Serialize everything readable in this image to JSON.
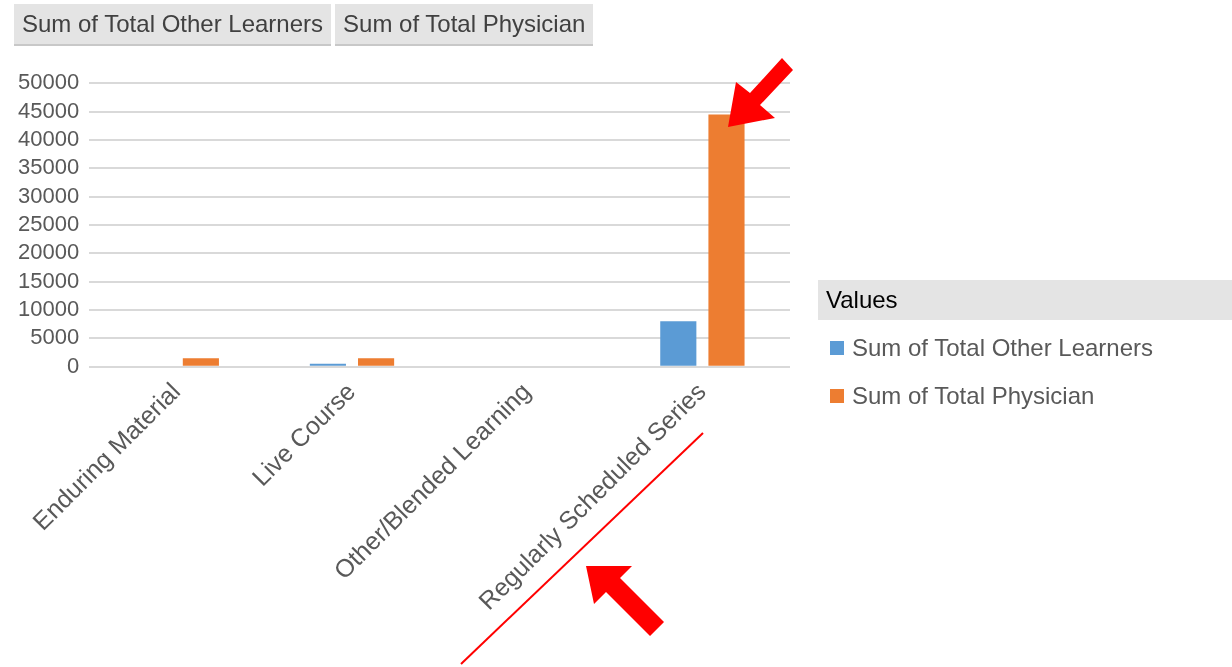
{
  "chart_data": {
    "type": "bar",
    "categories": [
      "Enduring Material",
      "Live Course",
      "Other/Blended Learning",
      "Regularly Scheduled Series"
    ],
    "series": [
      {
        "name": "Sum of Total Other Learners",
        "color": "#5b9bd5",
        "values": [
          0,
          500,
          0,
          8000
        ]
      },
      {
        "name": "Sum of Total Physician",
        "color": "#ed7d31",
        "values": [
          1500,
          1500,
          0,
          44500
        ]
      }
    ],
    "ylim": [
      0,
      50000
    ],
    "yticks": [
      0,
      5000,
      10000,
      15000,
      20000,
      25000,
      30000,
      35000,
      40000,
      45000,
      50000
    ],
    "grid": "y",
    "legend": "right",
    "legend_title": "Values",
    "annotations": [
      "Sum of Total Other Learners",
      "Sum of Total Physician"
    ]
  }
}
